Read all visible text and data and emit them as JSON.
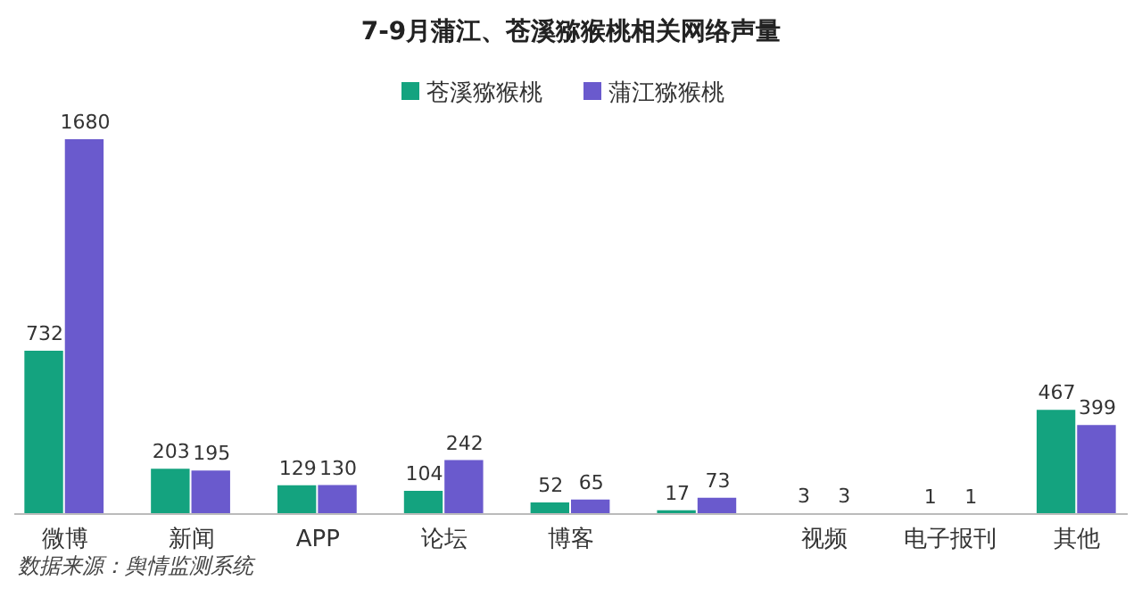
{
  "chart_data": {
    "type": "bar",
    "title": "7-9月蒲江、苍溪猕猴桃相关网络声量",
    "categories": [
      "微博",
      "新闻",
      "APP",
      "论坛",
      "博客",
      null,
      "视频",
      "电子报刊",
      "其他"
    ],
    "series": [
      {
        "name": "苍溪猕猴桃",
        "color": "#14a37f",
        "values": [
          732,
          203,
          129,
          104,
          52,
          17,
          3,
          1,
          467
        ]
      },
      {
        "name": "蒲江猕猴桃",
        "color": "#6a5acd",
        "values": [
          1680,
          195,
          130,
          242,
          65,
          73,
          3,
          1,
          399
        ]
      }
    ],
    "data_labels": true,
    "legend": "top",
    "grid": false,
    "annotations": [
      "数据来源：舆情监测系统"
    ]
  }
}
